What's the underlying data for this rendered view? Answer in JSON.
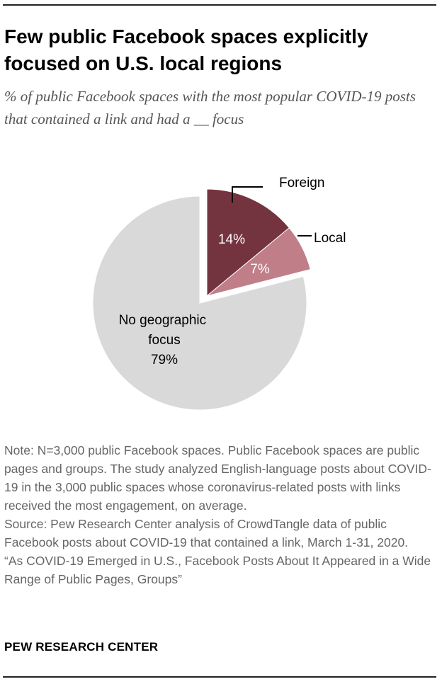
{
  "title": "Few public Facebook spaces explicitly focused on U.S. local regions",
  "subtitle": "% of public Facebook spaces with the most popular COVID-19 posts that contained a link and had a __ focus",
  "chart_data": {
    "type": "pie",
    "title": "Few public Facebook spaces explicitly focused on U.S. local regions",
    "unit": "%",
    "slices": [
      {
        "label": "Foreign",
        "value": 14,
        "value_label": "14%",
        "color": "#74343f",
        "exploded": true
      },
      {
        "label": "Local",
        "value": 7,
        "value_label": "7%",
        "color": "#c07e89",
        "exploded": true
      },
      {
        "label": "No geographic focus",
        "value": 79,
        "value_label": "79%",
        "color": "#d9d9d9",
        "exploded": false
      }
    ]
  },
  "notes": {
    "note": "Note: N=3,000 public Facebook spaces. Public Facebook spaces are public pages and groups. The study analyzed English-language posts about COVID-19 in the 3,000 public spaces whose coronavirus-related posts with links received the most engagement, on average.",
    "source": "Source: Pew Research Center analysis of CrowdTangle data of public Facebook posts about COVID-19 that contained a link, March 1-31, 2020.",
    "report": "“As COVID-19 Emerged in U.S., Facebook Posts About It Appeared in a Wide Range of Public Pages, Groups”"
  },
  "footer": "PEW RESEARCH CENTER",
  "colors": {
    "label_light": "#ffffff",
    "label_dark": "#000000",
    "leader": "#000000"
  }
}
